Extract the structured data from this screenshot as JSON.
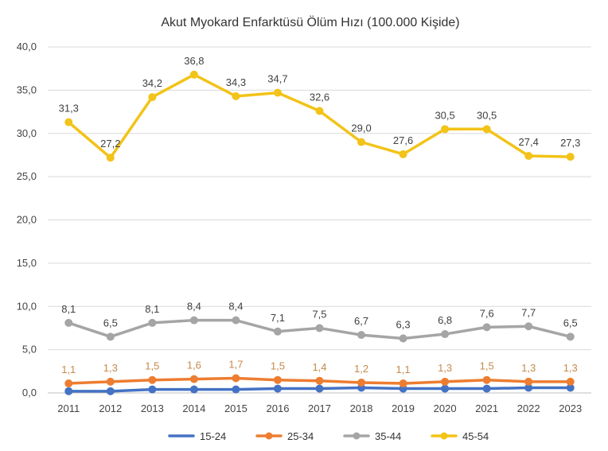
{
  "chart_data": {
    "type": "line",
    "title": "Akut Myokard Enfarktüsü Ölüm Hızı (100.000 Kişide)",
    "xlabel": "",
    "ylabel": "",
    "x": [
      "2011",
      "2012",
      "2013",
      "2014",
      "2015",
      "2016",
      "2017",
      "2018",
      "2019",
      "2020",
      "2021",
      "2022",
      "2023"
    ],
    "ylim": [
      0,
      40
    ],
    "yticks": [
      "0,0",
      "5,0",
      "10,0",
      "15,0",
      "20,0",
      "25,0",
      "30,0",
      "35,0",
      "40,0"
    ],
    "grid": true,
    "legend_position": "bottom",
    "series": [
      {
        "name": "15-24",
        "color": "#4472C4",
        "values": [
          0.2,
          0.2,
          0.4,
          0.4,
          0.4,
          0.5,
          0.5,
          0.6,
          0.5,
          0.5,
          0.5,
          0.6,
          0.6
        ],
        "labels": []
      },
      {
        "name": "25-34",
        "color": "#ED7D31",
        "label_color": "#C58A4A",
        "values": [
          1.1,
          1.3,
          1.5,
          1.6,
          1.7,
          1.5,
          1.4,
          1.2,
          1.1,
          1.3,
          1.5,
          1.3,
          1.3
        ],
        "labels": [
          "1,1",
          "1,3",
          "1,5",
          "1,6",
          "1,7",
          "1,5",
          "1,4",
          "1,2",
          "1,1",
          "1,3",
          "1,5",
          "1,3",
          "1,3"
        ]
      },
      {
        "name": "35-44",
        "color": "#A5A5A5",
        "label_color": "#404040",
        "values": [
          8.1,
          6.5,
          8.1,
          8.4,
          8.4,
          7.1,
          7.5,
          6.7,
          6.3,
          6.8,
          7.6,
          7.7,
          6.5
        ],
        "labels": [
          "8,1",
          "6,5",
          "8,1",
          "8,4",
          "8,4",
          "7,1",
          "7,5",
          "6,7",
          "6,3",
          "6,8",
          "7,6",
          "7,7",
          "6,5"
        ]
      },
      {
        "name": "45-54",
        "color": "#F2C318",
        "label_color": "#404040",
        "values": [
          31.3,
          27.2,
          34.2,
          36.8,
          34.3,
          34.7,
          32.6,
          29.0,
          27.6,
          30.5,
          30.5,
          27.4,
          27.3
        ],
        "labels": [
          "31,3",
          "27,2",
          "34,2",
          "36,8",
          "34,3",
          "34,7",
          "32,6",
          "29,0",
          "27,6",
          "30,5",
          "30,5",
          "27,4",
          "27,3"
        ]
      }
    ]
  }
}
